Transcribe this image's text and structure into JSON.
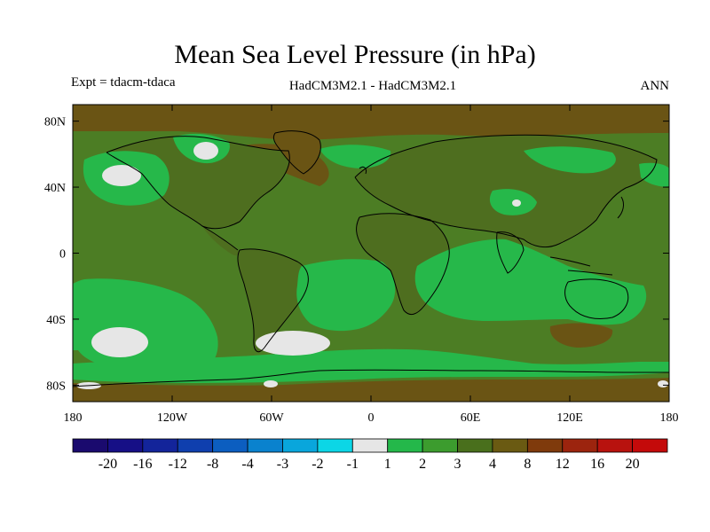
{
  "header": {
    "title": "Mean Sea Level Pressure (in hPa)",
    "expt": "Expt = tdacm-tdaca",
    "models": "HadCM3M2.1 - HadCM3M2.1",
    "period": "ANN"
  },
  "axes": {
    "lat_ticks": [
      "80N",
      "40N",
      "0",
      "40S",
      "80S"
    ],
    "lon_ticks": [
      "180",
      "120W",
      "60W",
      "0",
      "60E",
      "120E",
      "180"
    ]
  },
  "colorbar": {
    "colors": [
      "#1a0a6e",
      "#160f86",
      "#13249a",
      "#0f3fae",
      "#0c5ec0",
      "#0a82ce",
      "#09a6dc",
      "#0cd6e6",
      "#e6e6e6",
      "#24b84a",
      "#3c9c2e",
      "#496f1c",
      "#6a5a12",
      "#7f3a0c",
      "#9c240e",
      "#b8120e",
      "#c40a0a"
    ],
    "labels": [
      "-20",
      "-16",
      "-12",
      "-8",
      "-4",
      "-3",
      "-2",
      "-1",
      "1",
      "2",
      "3",
      "4",
      "8",
      "12",
      "16",
      "20"
    ]
  },
  "map_colors": {
    "ocean_base": "#4c7d24",
    "land": "#4e6e1f",
    "high_lat": "#6a5414",
    "green_light": "#26b84a",
    "near_zero": "#e6e6e6",
    "coast": "#000000"
  }
}
